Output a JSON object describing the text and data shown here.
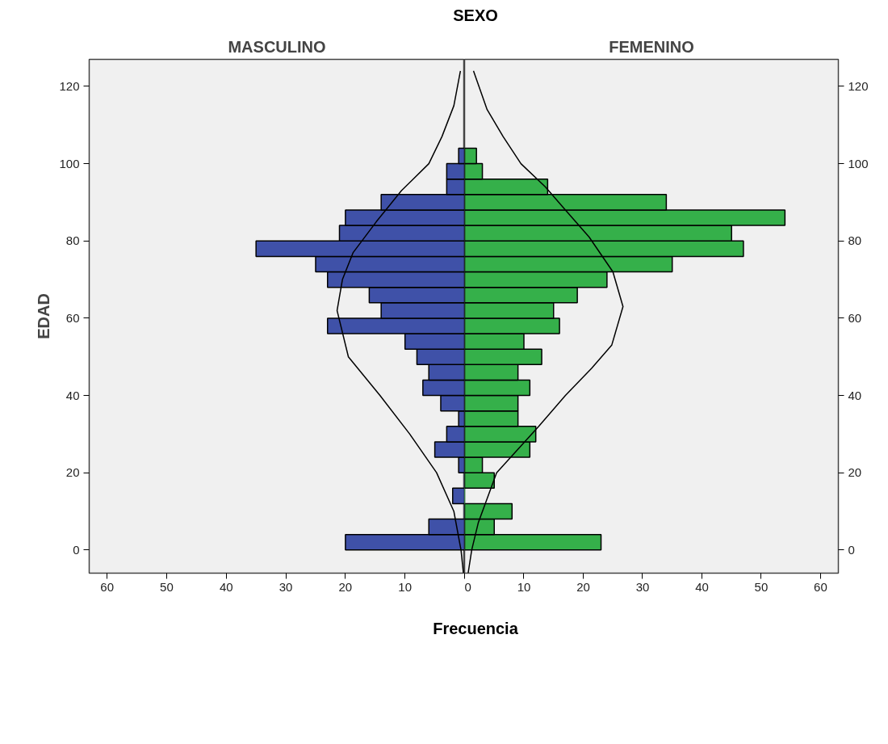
{
  "chart_data": [
    {
      "type": "histogram",
      "orientation": "horizontal",
      "title": "SEXO",
      "subtitle": "MASCULINO",
      "ylabel": "EDAD",
      "xlabel": "Frecuencia",
      "bins": [
        0,
        4,
        8,
        12,
        16,
        20,
        24,
        28,
        32,
        36,
        40,
        44,
        48,
        52,
        56,
        60,
        64,
        68,
        72,
        76,
        80,
        84,
        88,
        92,
        96,
        100,
        104
      ],
      "series": [
        {
          "color": "#3f51a8",
          "values": [
            20,
            6,
            0,
            2,
            0,
            1,
            5,
            3,
            1,
            4,
            7,
            6,
            8,
            10,
            23,
            14,
            16,
            23,
            25,
            35,
            21,
            20,
            14,
            3,
            3,
            1
          ]
        },
        {
          "type": "line",
          "color": "#000000",
          "x": [
            -6,
            0,
            10,
            20,
            30,
            40,
            50,
            62,
            70,
            77,
            85,
            93,
            100,
            107,
            115,
            124
          ],
          "values": [
            0.2,
            0.6,
            1.8,
            4.7,
            9.2,
            14.2,
            19.5,
            21.4,
            20.5,
            18.7,
            14.8,
            10.6,
            6,
            3.8,
            1.8,
            0.7
          ]
        }
      ],
      "xlim": [
        63,
        0
      ],
      "xticks": [
        60,
        50,
        40,
        30,
        20,
        10,
        {
          "value": 0,
          "label": null
        }
      ],
      "ylim": [
        -6,
        127
      ],
      "yticks": [
        0,
        20,
        40,
        60,
        80,
        100,
        120
      ],
      "grid": false
    },
    {
      "type": "histogram",
      "orientation": "horizontal",
      "subtitle": "FEMENINO",
      "bins": [
        0,
        4,
        8,
        12,
        16,
        20,
        24,
        28,
        32,
        36,
        40,
        44,
        48,
        52,
        56,
        60,
        64,
        68,
        72,
        76,
        80,
        84,
        88,
        92,
        96,
        100,
        104
      ],
      "series": [
        {
          "color": "#35b04a",
          "values": [
            23,
            5,
            8,
            0,
            5,
            3,
            11,
            12,
            9,
            9,
            11,
            9,
            13,
            10,
            16,
            15,
            19,
            24,
            35,
            47,
            45,
            54,
            34,
            14,
            3,
            2
          ]
        },
        {
          "type": "line",
          "color": "#000000",
          "x": [
            -6,
            0,
            7,
            20,
            32,
            40,
            47,
            53,
            63,
            72,
            81,
            88,
            94,
            100,
            107,
            114,
            124
          ],
          "values": [
            0.6,
            1.2,
            2.3,
            5.4,
            12.5,
            17,
            21.4,
            24.8,
            26.7,
            25,
            21,
            17,
            13.6,
            9.5,
            6.5,
            3.8,
            1.5
          ]
        }
      ],
      "xlim": [
        0,
        63
      ],
      "xticks": [
        0,
        10,
        20,
        30,
        40,
        50,
        60
      ],
      "ylim": [
        -6,
        127
      ],
      "yticks": [
        0,
        20,
        40,
        60,
        80,
        100,
        120
      ],
      "grid": false
    }
  ]
}
